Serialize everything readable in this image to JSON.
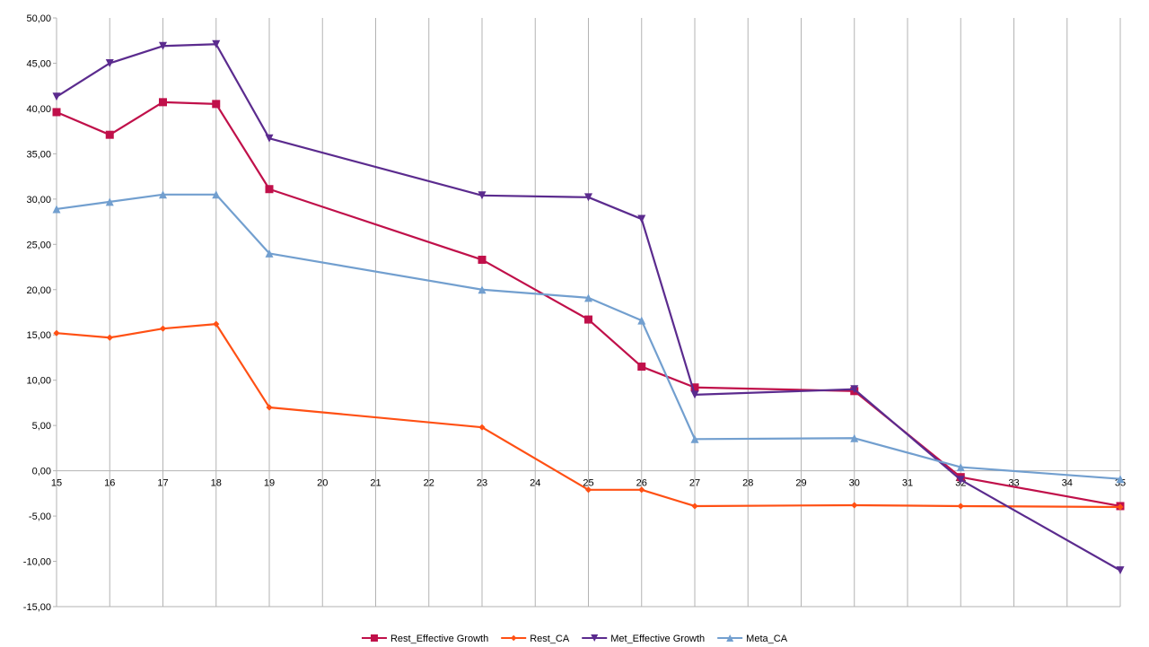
{
  "chart_data": {
    "type": "line",
    "x": [
      15,
      16,
      17,
      18,
      19,
      23,
      25,
      26,
      27,
      30,
      32,
      35
    ],
    "x_ticks": [
      "15",
      "16",
      "17",
      "18",
      "19",
      "20",
      "21",
      "22",
      "23",
      "24",
      "25",
      "26",
      "27",
      "28",
      "29",
      "30",
      "31",
      "32",
      "33",
      "34",
      "35"
    ],
    "y_ticks": [
      "50,00",
      "45,00",
      "40,00",
      "35,00",
      "30,00",
      "25,00",
      "20,00",
      "15,00",
      "10,00",
      "5,00",
      "0,00",
      "-5,00",
      "-10,00",
      "-15,00"
    ],
    "xlim": [
      15,
      35
    ],
    "ylim": [
      -15,
      50
    ],
    "grid": "vertical",
    "legend_position": "bottom",
    "series": [
      {
        "name": "Rest_Effective Growth",
        "color": "#c0104a",
        "marker": "square",
        "values": [
          39.6,
          37.1,
          40.7,
          40.5,
          31.1,
          23.3,
          16.7,
          11.5,
          9.2,
          8.8,
          -0.7,
          -3.9
        ]
      },
      {
        "name": "Rest_CA",
        "color": "#ff5014",
        "marker": "diamond",
        "values": [
          15.2,
          14.7,
          15.7,
          16.2,
          7.0,
          4.8,
          -2.1,
          -2.1,
          -3.9,
          -3.8,
          -3.9,
          -4.0
        ]
      },
      {
        "name": "Met_Effective Growth",
        "color": "#5b2b8e",
        "marker": "triangle-down",
        "values": [
          41.3,
          45.0,
          46.9,
          47.1,
          36.7,
          30.4,
          30.2,
          27.8,
          8.4,
          9.0,
          -1.0,
          -11.0
        ]
      },
      {
        "name": "Meta_CA",
        "color": "#729fcf",
        "marker": "triangle-up",
        "values": [
          28.9,
          29.7,
          30.5,
          30.5,
          24.0,
          20.0,
          19.1,
          16.6,
          3.5,
          3.6,
          0.4,
          -0.9
        ]
      }
    ]
  }
}
